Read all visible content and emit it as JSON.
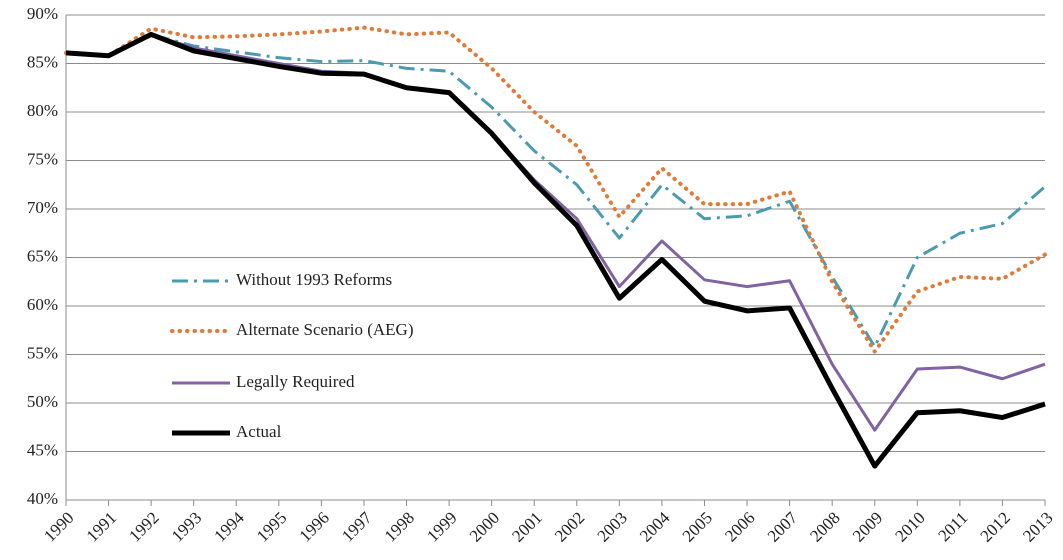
{
  "chart_data": {
    "type": "line",
    "categories": [
      "1990",
      "1991",
      "1992",
      "1993",
      "1994",
      "1995",
      "1996",
      "1997",
      "1998",
      "1999",
      "2000",
      "2001",
      "2002",
      "2003",
      "2004",
      "2005",
      "2006",
      "2007",
      "2008",
      "2009",
      "2010",
      "2011",
      "2012",
      "2013"
    ],
    "series": [
      {
        "name": "Without 1993 Reforms",
        "color": "#4a9bb0",
        "values": [
          86.1,
          85.8,
          88.0,
          86.8,
          86.2,
          85.6,
          85.2,
          85.3,
          84.5,
          84.2,
          80.5,
          76.0,
          72.5,
          67.0,
          72.5,
          69.0,
          69.3,
          70.8,
          63.0,
          55.8,
          65.0,
          67.5,
          68.5,
          72.3
        ]
      },
      {
        "name": "Alternate Scenario (AEG)",
        "color": "#e07b39",
        "values": [
          86.1,
          85.8,
          88.6,
          87.7,
          87.8,
          88.0,
          88.3,
          88.7,
          88.0,
          88.2,
          84.5,
          80.0,
          76.5,
          69.2,
          74.2,
          70.5,
          70.5,
          71.8,
          62.5,
          55.3,
          61.5,
          63.0,
          62.8,
          65.3
        ]
      },
      {
        "name": "Legally Required",
        "color": "#8064a2",
        "values": [
          86.1,
          85.8,
          88.0,
          86.6,
          85.8,
          85.0,
          84.2,
          84.0,
          82.5,
          82.0,
          77.8,
          73.0,
          69.0,
          62.0,
          66.7,
          62.7,
          62.0,
          62.6,
          54.0,
          47.2,
          53.5,
          53.7,
          52.5,
          54.0
        ]
      },
      {
        "name": "Actual",
        "color": "#000000",
        "values": [
          86.1,
          85.8,
          88.0,
          86.3,
          85.5,
          84.7,
          84.0,
          83.9,
          82.5,
          82.0,
          77.8,
          72.7,
          68.3,
          60.8,
          64.8,
          60.5,
          59.5,
          59.8,
          51.5,
          43.5,
          49.0,
          49.2,
          48.5,
          49.9
        ]
      }
    ],
    "ylim": [
      40,
      90
    ],
    "yticks": [
      {
        "value": 40,
        "label": "40%"
      },
      {
        "value": 45,
        "label": "45%"
      },
      {
        "value": 50,
        "label": "50%"
      },
      {
        "value": 55,
        "label": "55%"
      },
      {
        "value": 60,
        "label": "60%"
      },
      {
        "value": 65,
        "label": "65%"
      },
      {
        "value": 70,
        "label": "70%"
      },
      {
        "value": 75,
        "label": "75%"
      },
      {
        "value": 80,
        "label": "80%"
      },
      {
        "value": 85,
        "label": "85%"
      },
      {
        "value": 90,
        "label": "90%"
      }
    ],
    "grid": true
  }
}
